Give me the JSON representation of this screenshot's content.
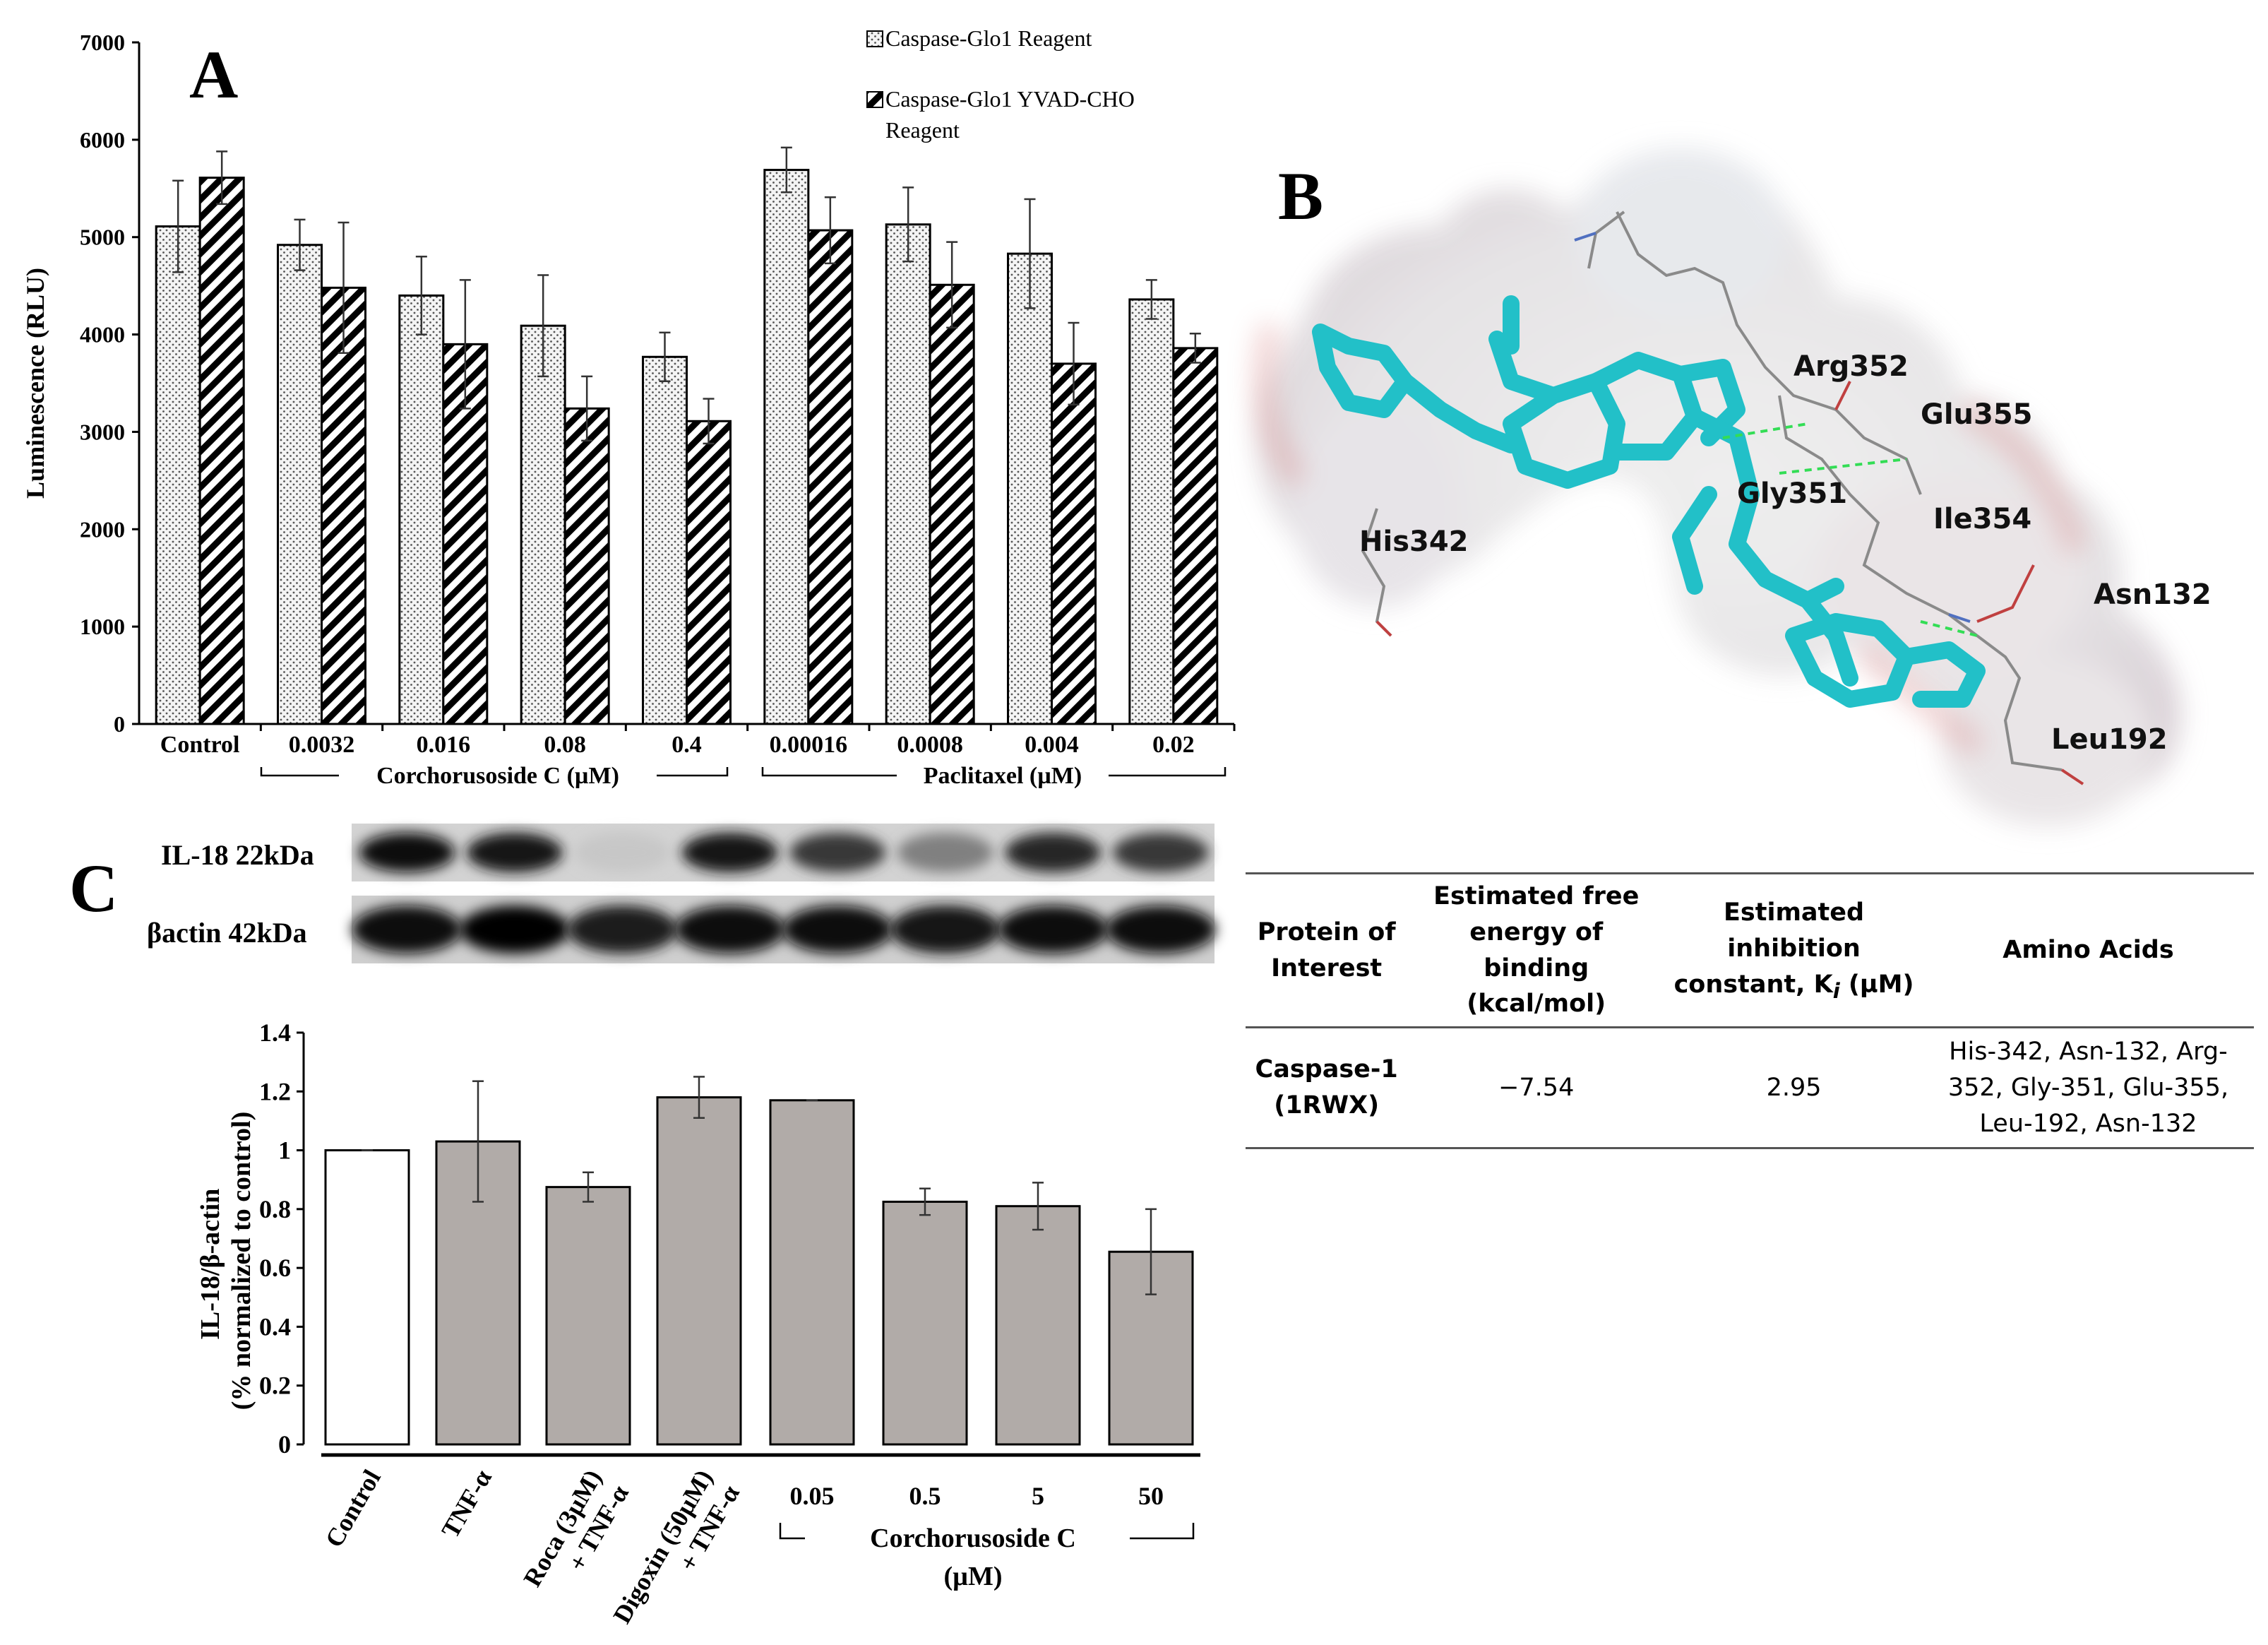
{
  "panel_labels": {
    "a": "A",
    "b": "B",
    "c": "C"
  },
  "colors": {
    "cyan_ligand": "#22c0c8",
    "bar_gray": "#b1aba8",
    "bar_white": "#ffffff"
  },
  "chart_data": [
    {
      "type": "bar",
      "panel": "A",
      "ylabel": "Luminescence (RLU)",
      "ylim": [
        0,
        7000
      ],
      "yticks": [
        "0",
        "1000",
        "2000",
        "3000",
        "4000",
        "5000",
        "6000",
        "7000"
      ],
      "categories": [
        "Control",
        "0.0032",
        "0.016",
        "0.08",
        "0.4",
        "0.00016",
        "0.0008",
        "0.004",
        "0.02"
      ],
      "group_labels": [
        "Corchorusoside C (µM)",
        "Paclitaxel (µM)"
      ],
      "legend_placement": "top-right",
      "series": [
        {
          "name": "Caspase-Glo1 Reagent",
          "pattern": "dotted",
          "values": [
            5110,
            4920,
            4400,
            4090,
            3770,
            5690,
            5130,
            4830,
            4360
          ],
          "errors": [
            470,
            260,
            400,
            520,
            250,
            230,
            380,
            560,
            200
          ]
        },
        {
          "name": "Caspase-Glo1 YVAD-CHO Reagent",
          "pattern": "hatched",
          "values": [
            5610,
            4480,
            3900,
            3240,
            3110,
            5070,
            4510,
            3700,
            3860
          ],
          "errors": [
            270,
            670,
            660,
            330,
            230,
            340,
            440,
            420,
            150
          ]
        }
      ]
    },
    {
      "type": "bar",
      "panel": "C",
      "ylabel_line1": "IL-18/β-actin",
      "ylabel_line2": "(% normalized to control)",
      "ylim": [
        0,
        1.4
      ],
      "yticks": [
        "0",
        "0.2",
        "0.4",
        "0.6",
        "0.8",
        "1",
        "1.2",
        "1.4"
      ],
      "categories": [
        "Control",
        "TNF-α",
        "Roca (3µM) + TNF-α",
        "Digoxin (50µM) + TNF-α",
        "0.05",
        "0.5",
        "5",
        "50"
      ],
      "rotated_labels": [
        {
          "line1": "Control",
          "line2": ""
        },
        {
          "line1": "TNF-α",
          "line2": ""
        },
        {
          "line1": "Roca (3µM)",
          "line2": "+ TNF-α"
        },
        {
          "line1": "Digoxin (50µM)",
          "line2": "+ TNF-α"
        }
      ],
      "group_label_line1": "Corchorusoside C",
      "group_label_line2": "(µM)",
      "values": [
        1.0,
        1.03,
        0.875,
        1.18,
        1.17,
        0.825,
        0.81,
        0.655
      ],
      "errors": [
        0.0,
        0.205,
        0.05,
        0.07,
        0.0,
        0.045,
        0.08,
        0.145
      ]
    }
  ],
  "blot": {
    "rows": [
      "IL-18 22kDa",
      "βactin 42kDa"
    ],
    "band_intensity": {
      "il18": [
        0.95,
        0.9,
        0.22,
        0.92,
        0.78,
        0.5,
        0.85,
        0.78
      ],
      "actin": [
        0.95,
        0.98,
        0.88,
        0.95,
        0.97,
        0.92,
        0.94,
        0.97
      ]
    }
  },
  "molecule": {
    "residues": [
      "Arg352",
      "Glu355",
      "Gly351",
      "Ile354",
      "His342",
      "Asn132",
      "Leu192"
    ]
  },
  "docking_table": {
    "headers": {
      "protein": [
        "Protein of",
        "Interest"
      ],
      "energy": [
        "Estimated free",
        "energy of binding",
        "(kcal/mol)"
      ],
      "inhibition": [
        "Estimated",
        "inhibition",
        "constant, K",
        "i",
        " (µM)"
      ],
      "amino": "Amino Acids"
    },
    "row": {
      "protein": [
        "Caspase-1",
        "(1RWX)"
      ],
      "energy": "−7.54",
      "ki": "2.95",
      "amino": [
        "His-342, Asn-132, Arg-",
        "352, Gly-351, Glu-355,",
        "Leu-192, Asn-132"
      ]
    }
  }
}
